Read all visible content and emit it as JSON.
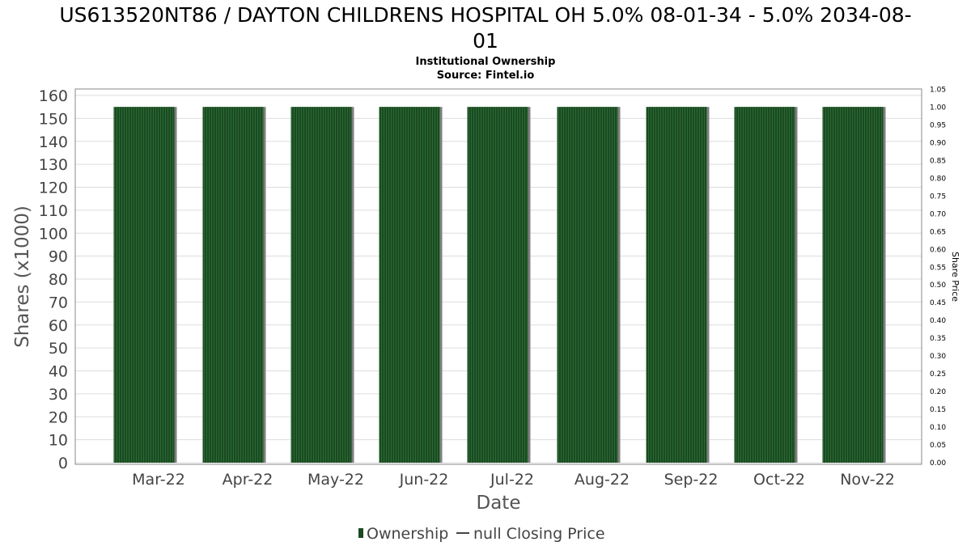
{
  "chart_data": {
    "type": "bar",
    "title": "US613520NT86 / DAYTON CHILDRENS HOSPITAL OH 5.0% 08-01-34 - 5.0% 2034-08-",
    "title_line2": "01",
    "subtitle": "Institutional Ownership",
    "source": "Source: Fintel.io",
    "xlabel": "Date",
    "ylabel": "Shares (x1000)",
    "y2label": "Share Price",
    "categories": [
      "Mar-22",
      "Apr-22",
      "May-22",
      "Jun-22",
      "Jul-22",
      "Aug-22",
      "Sep-22",
      "Oct-22",
      "Nov-22"
    ],
    "series": [
      {
        "name": "Ownership",
        "values": [
          155,
          155,
          155,
          155,
          155,
          155,
          155,
          155,
          155
        ]
      }
    ],
    "ylim": [
      0,
      160
    ],
    "yticks": [
      0,
      10,
      20,
      30,
      40,
      50,
      60,
      70,
      80,
      90,
      100,
      110,
      120,
      130,
      140,
      150,
      160
    ],
    "y2lim": [
      0,
      1.05
    ],
    "y2ticks": [
      "0.00",
      "0.05",
      "0.10",
      "0.15",
      "0.20",
      "0.25",
      "0.30",
      "0.35",
      "0.40",
      "0.45",
      "0.50",
      "0.55",
      "0.60",
      "0.65",
      "0.70",
      "0.75",
      "0.80",
      "0.85",
      "0.90",
      "0.95",
      "1.00",
      "1.05"
    ],
    "grid": true,
    "legend": {
      "placement": "bottom",
      "items": [
        {
          "label": "Ownership",
          "type": "bar"
        },
        {
          "label": "null Closing Price",
          "type": "line"
        }
      ]
    },
    "colors": {
      "bar": "#1a4a22",
      "bar_stripe": "#2b6a33",
      "bar_shadow": "#808080",
      "grid": "#dddddd",
      "axis": "#888888"
    }
  }
}
